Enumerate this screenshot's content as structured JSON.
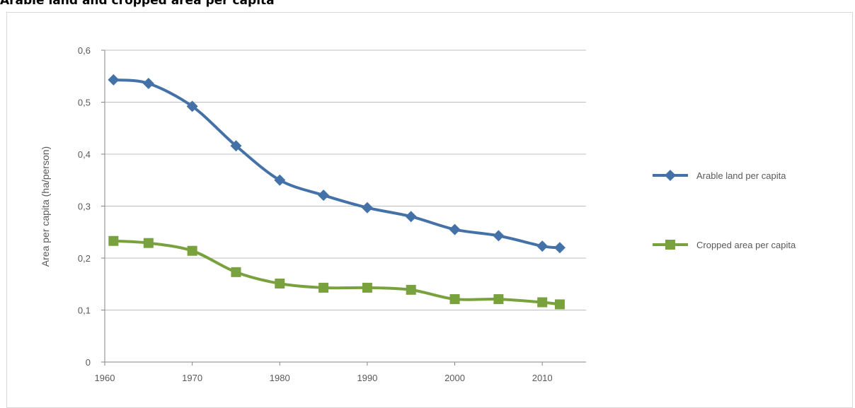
{
  "title": "Arable land and cropped area per capita",
  "chart_data": {
    "type": "line",
    "title": "Arable land and cropped area per capita",
    "xlabel": "",
    "ylabel": "Area per capita (ha/person)",
    "xlim": [
      1960,
      2015
    ],
    "ylim": [
      0,
      0.6
    ],
    "x_ticks": [
      "1960",
      "1970",
      "1980",
      "1990",
      "2000",
      "2010"
    ],
    "y_ticks": [
      "0",
      "0,1",
      "0,2",
      "0,3",
      "0,4",
      "0,5",
      "0,6"
    ],
    "grid": "horizontal",
    "legend_position": "right",
    "series": [
      {
        "name": "Arable land per capita",
        "marker": "diamond",
        "color": "#4472a8",
        "x": [
          1961,
          1965,
          1970,
          1975,
          1980,
          1985,
          1990,
          1995,
          2000,
          2005,
          2010,
          2012
        ],
        "values": [
          0.543,
          0.536,
          0.492,
          0.416,
          0.35,
          0.321,
          0.297,
          0.28,
          0.255,
          0.243,
          0.223,
          0.22
        ]
      },
      {
        "name": "Cropped area per capita",
        "marker": "square",
        "color": "#79a13d",
        "x": [
          1961,
          1965,
          1970,
          1975,
          1980,
          1985,
          1990,
          1995,
          2000,
          2005,
          2010,
          2012
        ],
        "values": [
          0.233,
          0.229,
          0.214,
          0.173,
          0.151,
          0.143,
          0.143,
          0.139,
          0.121,
          0.121,
          0.115,
          0.111
        ]
      }
    ]
  }
}
